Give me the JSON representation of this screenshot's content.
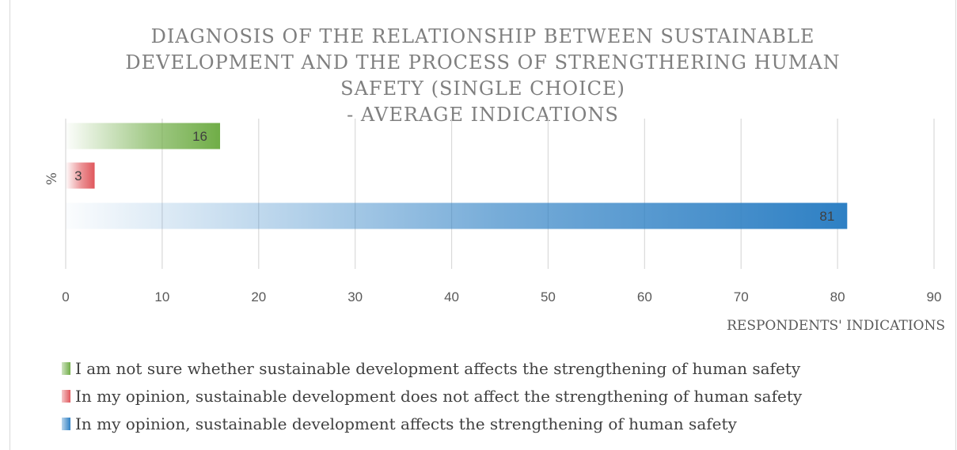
{
  "chart_data": {
    "type": "bar",
    "orientation": "horizontal",
    "title_lines": [
      "DIAGNOSIS OF THE RELATIONSHIP BETWEEN SUSTAINABLE",
      "DEVELOPMENT AND THE PROCESS OF STRENGTHERING  HUMAN",
      "SAFETY (SINGLE CHOICE)",
      "- AVERAGE INDICATIONS"
    ],
    "ylabel": "%",
    "xlabel": "RESPONDENTS' INDICATIONS",
    "xlim": [
      0,
      90
    ],
    "xticks": [
      0,
      10,
      20,
      30,
      40,
      50,
      60,
      70,
      80,
      90
    ],
    "grid": true,
    "legend_position": "bottom",
    "series": [
      {
        "name": "I am not sure whether sustainable development affects the strengthening of human safety",
        "value": 16,
        "color": "#70ad47"
      },
      {
        "name": "In my opinion, sustainable development does not affect the strengthening of human safety",
        "value": 3,
        "color": "#e0575c"
      },
      {
        "name": "In my opinion, sustainable development affects the strengthening of human safety",
        "value": 81,
        "color": "#2e80c4"
      }
    ]
  }
}
